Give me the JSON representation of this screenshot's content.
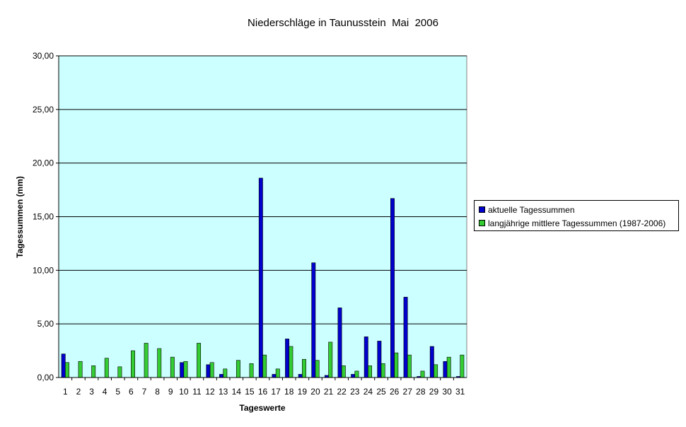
{
  "chart_data": {
    "type": "bar",
    "title": "Niederschläge in Taunusstein  Mai  2006",
    "xlabel": "Tageswerte",
    "ylabel": "Tagessummen (mm)",
    "ylim": [
      0,
      30
    ],
    "yticks": [
      "0,00",
      "5,00",
      "10,00",
      "15,00",
      "20,00",
      "25,00",
      "30,00"
    ],
    "grid": true,
    "legend_position": "right",
    "plot_background": "#CCFFFF",
    "categories": [
      "1",
      "2",
      "3",
      "4",
      "5",
      "6",
      "7",
      "8",
      "9",
      "10",
      "11",
      "12",
      "13",
      "14",
      "15",
      "16",
      "17",
      "18",
      "19",
      "20",
      "21",
      "22",
      "23",
      "24",
      "25",
      "26",
      "27",
      "28",
      "29",
      "30",
      "31"
    ],
    "series": [
      {
        "name": "aktuelle Tagessummen",
        "color": "#0000CC",
        "values": [
          2.2,
          0,
          0,
          0,
          0,
          0,
          0,
          0,
          0,
          1.4,
          0,
          1.2,
          0.3,
          0,
          0,
          18.6,
          0.3,
          3.6,
          0.3,
          10.7,
          0.2,
          6.5,
          0.3,
          3.8,
          3.4,
          16.7,
          7.5,
          0.1,
          2.9,
          1.5,
          0.1
        ]
      },
      {
        "name": "langjährige mittlere Tagessummen (1987-2006)",
        "color": "#33CC33",
        "values": [
          1.4,
          1.5,
          1.1,
          1.8,
          1.0,
          2.5,
          3.2,
          2.7,
          1.9,
          1.5,
          3.2,
          1.4,
          0.8,
          1.6,
          1.3,
          2.1,
          0.8,
          2.9,
          1.7,
          1.6,
          3.3,
          1.1,
          0.6,
          1.1,
          1.3,
          2.3,
          2.1,
          0.6,
          1.2,
          1.9,
          2.1
        ]
      }
    ]
  }
}
